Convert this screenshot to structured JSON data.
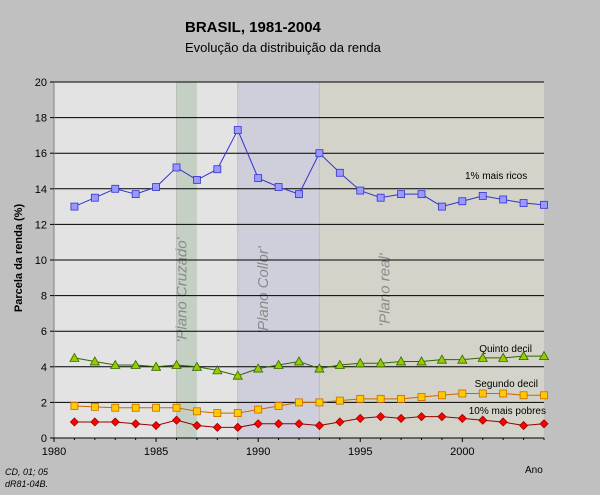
{
  "chart_data": {
    "type": "line",
    "title": "BRASIL, 1981-2004",
    "subtitle": "Evolução da distribuição da renda",
    "ylabel": "Parcela da renda (%)",
    "xlabel": "Ano",
    "xlim": [
      1980,
      2004
    ],
    "ylim": [
      0,
      20
    ],
    "xticks": [
      1980,
      1985,
      1990,
      1995,
      2000
    ],
    "yticks": [
      0,
      2,
      4,
      6,
      8,
      10,
      12,
      14,
      16,
      18,
      20
    ],
    "grid": "horizontal",
    "x": [
      1981,
      1982,
      1983,
      1984,
      1985,
      1986,
      1987,
      1988,
      1989,
      1990,
      1991,
      1992,
      1993,
      1994,
      1995,
      1996,
      1997,
      1998,
      1999,
      2000,
      2001,
      2002,
      2003,
      2004
    ],
    "series": [
      {
        "name": "1% mais ricos",
        "color": "#9999ff",
        "stroke": "#3333cc",
        "marker": "square",
        "values": [
          13.0,
          13.5,
          14.0,
          13.7,
          14.1,
          15.2,
          14.5,
          15.1,
          17.3,
          14.6,
          14.1,
          13.7,
          16.0,
          14.9,
          13.9,
          13.5,
          13.7,
          13.7,
          13.0,
          13.3,
          13.6,
          13.4,
          13.2,
          13.1
        ]
      },
      {
        "name": "Quinto decil",
        "color": "#99cc00",
        "stroke": "#336600",
        "marker": "triangle",
        "values": [
          4.5,
          4.3,
          4.1,
          4.1,
          4.0,
          4.1,
          4.0,
          3.8,
          3.5,
          3.9,
          4.1,
          4.3,
          3.9,
          4.1,
          4.2,
          4.2,
          4.3,
          4.3,
          4.4,
          4.4,
          4.5,
          4.5,
          4.6,
          4.6
        ]
      },
      {
        "name": "Segundo decil",
        "color": "#ffcc00",
        "stroke": "#cc6600",
        "marker": "square",
        "values": [
          1.8,
          1.75,
          1.7,
          1.7,
          1.7,
          1.7,
          1.5,
          1.4,
          1.4,
          1.6,
          1.8,
          2.0,
          2.0,
          2.1,
          2.2,
          2.2,
          2.2,
          2.3,
          2.4,
          2.5,
          2.5,
          2.5,
          2.4,
          2.4
        ]
      },
      {
        "name": "10% mais pobres",
        "color": "#ff0000",
        "stroke": "#990000",
        "marker": "diamond",
        "values": [
          0.9,
          0.9,
          0.9,
          0.8,
          0.7,
          1.0,
          0.7,
          0.6,
          0.6,
          0.8,
          0.8,
          0.8,
          0.7,
          0.9,
          1.1,
          1.2,
          1.1,
          1.2,
          1.2,
          1.1,
          1.0,
          0.9,
          0.7,
          0.8
        ]
      }
    ],
    "periods": [
      {
        "label": "'Plano Cruzado'",
        "start": 1986,
        "end": 1987,
        "color": "#c4d0c4"
      },
      {
        "label": "'Plano Collor'",
        "start": 1989,
        "end": 1993,
        "color": "#cfcfdc"
      },
      {
        "label": "'Plano real'",
        "start": 1993,
        "end": 2004,
        "color": "#d3d3ca"
      }
    ]
  },
  "source_note": [
    "CD, 01; 05",
    "dR81-04B."
  ]
}
